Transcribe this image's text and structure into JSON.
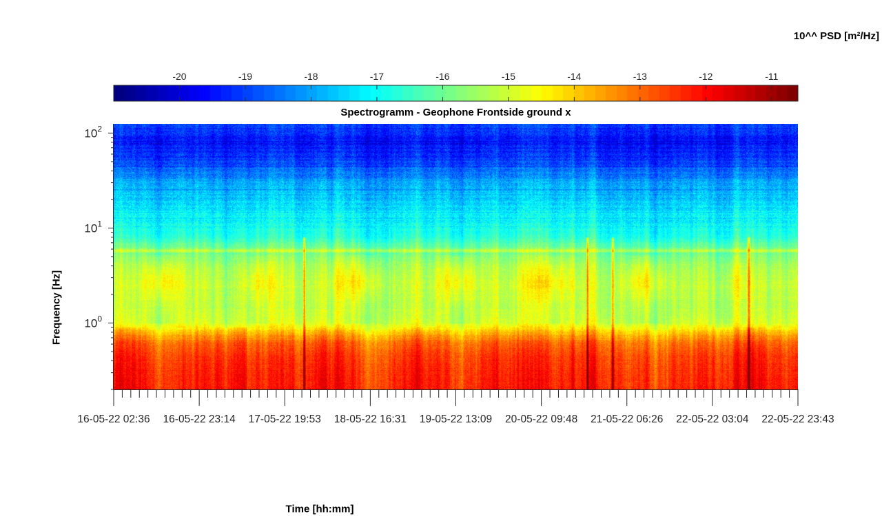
{
  "chart_data": {
    "type": "heatmap",
    "title": "Spectrogramm - Geophone Frontside ground x",
    "xlabel": "Time [hh:mm]",
    "ylabel": "Frequency [Hz]",
    "colorbar": {
      "title": "10^^ PSD [m²/Hz]",
      "position": "top",
      "colormap": "jet",
      "range": [
        -21,
        -10.6
      ],
      "ticks": [
        -20,
        -19,
        -18,
        -17,
        -16,
        -15,
        -14,
        -13,
        -12,
        -11
      ]
    },
    "x_axis": {
      "tick_labels": [
        "16-05-22 02:36",
        "16-05-22 23:14",
        "17-05-22 19:53",
        "18-05-22 16:31",
        "19-05-22 13:09",
        "20-05-22 09:48",
        "21-05-22 06:26",
        "22-05-22 03:04",
        "22-05-22 23:43"
      ]
    },
    "y_axis": {
      "scale": "log",
      "range": [
        0.2,
        125
      ],
      "tick_labels": [
        {
          "value": 1,
          "base": "10",
          "exp": "0"
        },
        {
          "value": 10,
          "base": "10",
          "exp": "1"
        },
        {
          "value": 100,
          "base": "10",
          "exp": "2"
        }
      ]
    },
    "profile": [
      {
        "freq": 0.2,
        "level": -12.2
      },
      {
        "freq": 0.3,
        "level": -12.3
      },
      {
        "freq": 0.45,
        "level": -12.5
      },
      {
        "freq": 0.6,
        "level": -12.9
      },
      {
        "freq": 0.75,
        "level": -13.6
      },
      {
        "freq": 1.0,
        "level": -14.9
      },
      {
        "freq": 1.5,
        "level": -15.2
      },
      {
        "freq": 2.5,
        "level": -15.1
      },
      {
        "freq": 4.0,
        "level": -15.4
      },
      {
        "freq": 5.5,
        "level": -15.9
      },
      {
        "freq": 5.8,
        "level": -15.0
      },
      {
        "freq": 6.2,
        "level": -15.9
      },
      {
        "freq": 8.0,
        "level": -16.7
      },
      {
        "freq": 12,
        "level": -17.1
      },
      {
        "freq": 20,
        "level": -17.6
      },
      {
        "freq": 30,
        "level": -18.0
      },
      {
        "freq": 50,
        "level": -19.0
      },
      {
        "freq": 80,
        "level": -19.6
      },
      {
        "freq": 125,
        "level": -19.0
      }
    ],
    "activity_periods": [
      {
        "from": 0.04,
        "to": 0.1,
        "strength": 1.0
      },
      {
        "from": 0.19,
        "to": 0.24,
        "strength": 0.7
      },
      {
        "from": 0.32,
        "to": 0.39,
        "strength": 1.0
      },
      {
        "from": 0.47,
        "to": 0.53,
        "strength": 1.0
      },
      {
        "from": 0.59,
        "to": 0.67,
        "strength": 0.9
      },
      {
        "from": 0.74,
        "to": 0.81,
        "strength": 1.0
      },
      {
        "from": 0.89,
        "to": 0.93,
        "strength": 0.4
      }
    ],
    "transients": [
      0.278,
      0.692,
      0.729,
      0.928
    ]
  }
}
